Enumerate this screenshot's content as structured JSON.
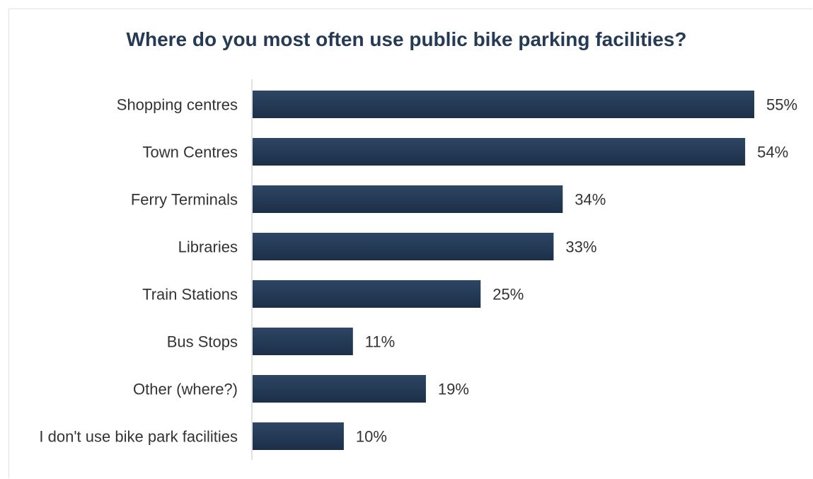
{
  "chart_data": {
    "type": "bar",
    "orientation": "horizontal",
    "title": "Where do you most often use public bike parking facilities?",
    "categories": [
      "Shopping centres",
      "Town Centres",
      "Ferry Terminals",
      "Libraries",
      "Train Stations",
      "Bus Stops",
      "Other (where?)",
      "I don't use bike park facilities"
    ],
    "values": [
      55,
      54,
      34,
      33,
      25,
      11,
      19,
      10
    ],
    "value_labels": [
      "55%",
      "54%",
      "34%",
      "33%",
      "25%",
      "11%",
      "19%",
      "10%"
    ],
    "unit": "%",
    "xlabel": "",
    "ylabel": "",
    "xlim": [
      0,
      55
    ],
    "grid": false,
    "legend": "none",
    "bar_color": "#243a55"
  }
}
